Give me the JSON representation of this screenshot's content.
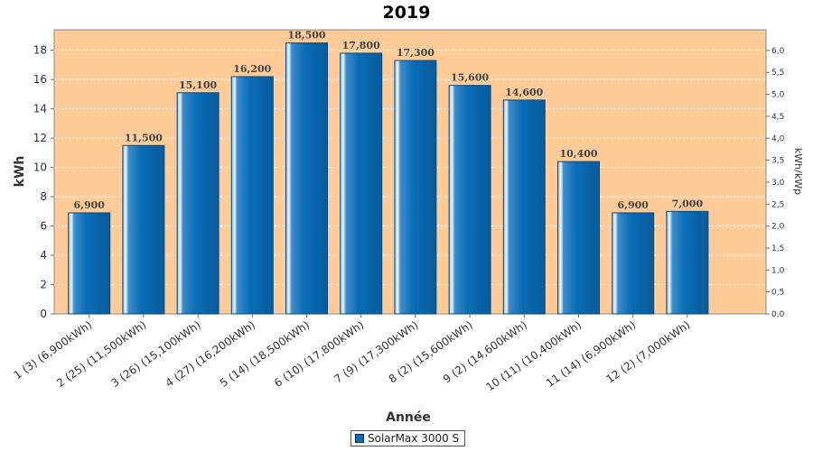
{
  "chart_data": {
    "type": "bar",
    "title": "2019",
    "xlabel": "Année",
    "ylabel": "kWh",
    "ylabel_right": "kWh/kWp",
    "categories": [
      "1 (3)  (6,900kWh)",
      "2 (25)  (11,500kWh)",
      "3 (26)  (15,100kWh)",
      "4 (27)  (16,200kWh)",
      "5 (14)  (18,500kWh)",
      "6 (10)  (17,800kWh)",
      "7 (9)  (17,300kWh)",
      "8 (2)  (15,600kWh)",
      "9 (2)  (14,600kWh)",
      "10 (11)  (10,400kWh)",
      "11 (14)  (6,900kWh)",
      "12 (2)  (7,000kWh)"
    ],
    "series": [
      {
        "name": "SolarMax 3000 S",
        "values": [
          6.9,
          11.5,
          15.1,
          16.2,
          18.5,
          17.8,
          17.3,
          15.6,
          14.6,
          10.4,
          6.9,
          7.0
        ],
        "data_labels": [
          "6,900",
          "11,500",
          "15,100",
          "16,200",
          "18,500",
          "17,800",
          "17,300",
          "15,600",
          "14,600",
          "10,400",
          "6,900",
          "7,000"
        ]
      }
    ],
    "ylim": [
      0,
      19.4
    ],
    "yticks": [
      "0",
      "2",
      "4",
      "6",
      "8",
      "10",
      "12",
      "14",
      "16",
      "18"
    ],
    "ylim_right": [
      0,
      6.47
    ],
    "yticks_right": [
      "0,0",
      "0,5",
      "1,0",
      "1,5",
      "2,0",
      "2,5",
      "3,0",
      "3,5",
      "4,0",
      "4,5",
      "5,0",
      "5,5",
      "6,0"
    ],
    "grid": true,
    "legend_position": "bottom",
    "colors": {
      "plot_background": "#ffcc99",
      "bar": "#0a6cb5",
      "bar_dark": "#064a80",
      "bar_highlight": "#e8f2fa",
      "grid": "#ffffff"
    }
  }
}
